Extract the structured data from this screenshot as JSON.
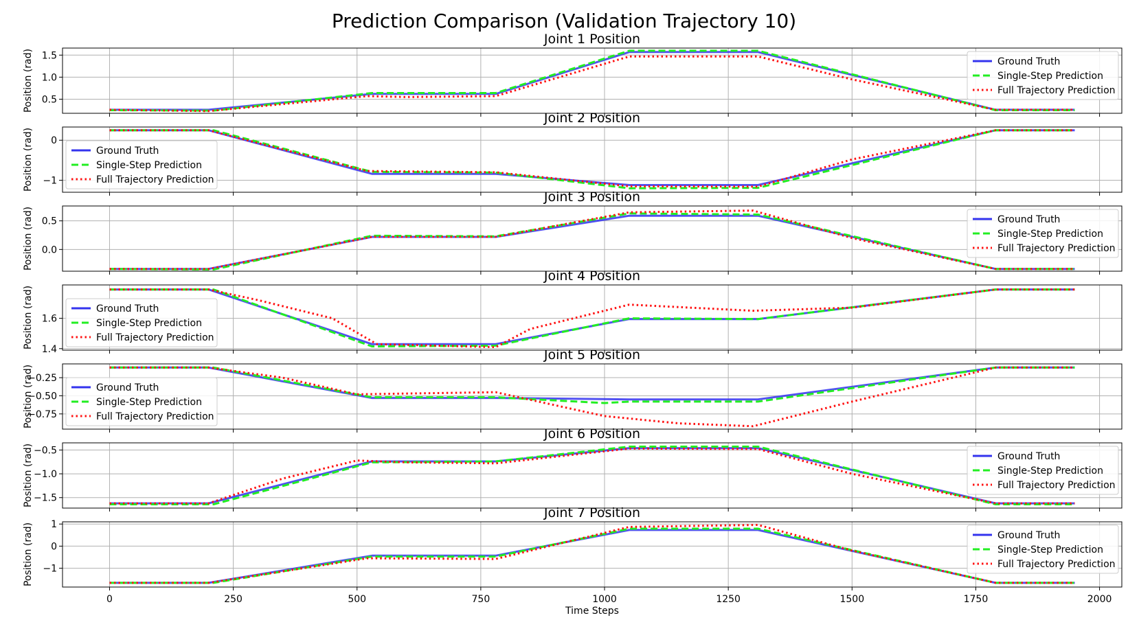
{
  "title": "Prediction Comparison (Validation Trajectory 10)",
  "xlabel": "Time Steps",
  "x_ticks": [
    0,
    250,
    500,
    750,
    1000,
    1250,
    1500,
    1750,
    2000
  ],
  "chart_data": {
    "type": "line",
    "title": "Prediction Comparison (Validation Trajectory 10)",
    "xlabel": "Time Steps",
    "xlim": [
      -95,
      2045
    ],
    "grid": true,
    "series_styles": {
      "Ground Truth": {
        "color": "#3333ee",
        "dash": "solid"
      },
      "Single-Step Prediction": {
        "color": "#22ee22",
        "dash": "dashed"
      },
      "Full Trajectory Prediction": {
        "color": "#ff1111",
        "dash": "dotted"
      }
    },
    "subplots": [
      {
        "title": "Joint 1 Position",
        "ylabel": "Position (rad)",
        "ylim": [
          0.18,
          1.66
        ],
        "yticks": [
          "0.5",
          "1.0",
          "1.5"
        ],
        "legend": "upper right",
        "series": [
          {
            "name": "Ground Truth",
            "x": [
              0,
              200,
              530,
              780,
              1050,
              1310,
              1790,
              1950
            ],
            "y": [
              0.26,
              0.26,
              0.62,
              0.62,
              1.57,
              1.57,
              0.26,
              0.26
            ]
          },
          {
            "name": "Single-Step Prediction",
            "x": [
              0,
              210,
              530,
              780,
              1050,
              1310,
              1790,
              1950
            ],
            "y": [
              0.25,
              0.24,
              0.64,
              0.64,
              1.6,
              1.6,
              0.25,
              0.25
            ]
          },
          {
            "name": "Full Trajectory Prediction",
            "x": [
              0,
              200,
              520,
              600,
              780,
              1050,
              1310,
              1500,
              1790,
              1950
            ],
            "y": [
              0.26,
              0.23,
              0.57,
              0.55,
              0.57,
              1.47,
              1.47,
              0.95,
              0.26,
              0.26
            ]
          }
        ]
      },
      {
        "title": "Joint 2 Position",
        "ylabel": "Position (rad)",
        "ylim": [
          -1.3,
          0.33
        ],
        "yticks": [
          "0",
          "−1"
        ],
        "legend": "lower left",
        "series": [
          {
            "name": "Ground Truth",
            "x": [
              0,
              200,
              530,
              780,
              1050,
              1310,
              1790,
              1950
            ],
            "y": [
              0.25,
              0.25,
              -0.84,
              -0.84,
              -1.12,
              -1.12,
              0.25,
              0.25
            ]
          },
          {
            "name": "Single-Step Prediction",
            "x": [
              0,
              210,
              530,
              780,
              1050,
              1310,
              1790,
              1950
            ],
            "y": [
              0.25,
              0.25,
              -0.79,
              -0.81,
              -1.2,
              -1.19,
              0.25,
              0.25
            ]
          },
          {
            "name": "Full Trajectory Prediction",
            "x": [
              0,
              200,
              520,
              780,
              1050,
              1310,
              1500,
              1790,
              1950
            ],
            "y": [
              0.25,
              0.25,
              -0.77,
              -0.8,
              -1.15,
              -1.16,
              -0.48,
              0.25,
              0.25
            ]
          }
        ]
      },
      {
        "title": "Joint 3 Position",
        "ylabel": "Position (rad)",
        "ylim": [
          -0.38,
          0.76
        ],
        "yticks": [
          "0.5",
          "0.0"
        ],
        "legend": "upper right",
        "series": [
          {
            "name": "Ground Truth",
            "x": [
              0,
              200,
              530,
              780,
              1050,
              1310,
              1790,
              1950
            ],
            "y": [
              -0.34,
              -0.34,
              0.22,
              0.22,
              0.59,
              0.59,
              -0.34,
              -0.34
            ]
          },
          {
            "name": "Single-Step Prediction",
            "x": [
              0,
              210,
              530,
              780,
              1050,
              1310,
              1790,
              1950
            ],
            "y": [
              -0.34,
              -0.35,
              0.24,
              0.23,
              0.63,
              0.61,
              -0.34,
              -0.34
            ]
          },
          {
            "name": "Full Trajectory Prediction",
            "x": [
              0,
              200,
              530,
              780,
              1050,
              1300,
              1500,
              1790,
              1950
            ],
            "y": [
              -0.34,
              -0.34,
              0.22,
              0.22,
              0.65,
              0.68,
              0.2,
              -0.34,
              -0.34
            ]
          }
        ]
      },
      {
        "title": "Joint 4 Position",
        "ylabel": "Position (rad)",
        "ylim": [
          1.39,
          1.82
        ],
        "yticks": [
          "1.6",
          "1.4"
        ],
        "legend": "lower left",
        "series": [
          {
            "name": "Ground Truth",
            "x": [
              0,
              200,
              530,
              780,
              1050,
              1310,
              1790,
              1950
            ],
            "y": [
              1.79,
              1.79,
              1.43,
              1.43,
              1.595,
              1.595,
              1.79,
              1.79
            ]
          },
          {
            "name": "Single-Step Prediction",
            "x": [
              0,
              210,
              530,
              780,
              1050,
              1310,
              1790,
              1950
            ],
            "y": [
              1.79,
              1.79,
              1.415,
              1.42,
              1.6,
              1.595,
              1.79,
              1.79
            ]
          },
          {
            "name": "Full Trajectory Prediction",
            "x": [
              0,
              200,
              300,
              450,
              540,
              780,
              850,
              1050,
              1300,
              1500,
              1790,
              1950
            ],
            "y": [
              1.79,
              1.79,
              1.72,
              1.6,
              1.43,
              1.41,
              1.53,
              1.69,
              1.65,
              1.67,
              1.79,
              1.79
            ]
          }
        ]
      },
      {
        "title": "Joint 5 Position",
        "ylabel": "Position (rad)",
        "ylim": [
          -0.96,
          -0.06
        ],
        "yticks": [
          "−0.25",
          "−0.50",
          "−0.75"
        ],
        "legend": "lower left",
        "series": [
          {
            "name": "Ground Truth",
            "x": [
              0,
              200,
              530,
              780,
              1050,
              1310,
              1790,
              1950
            ],
            "y": [
              -0.11,
              -0.11,
              -0.53,
              -0.53,
              -0.55,
              -0.55,
              -0.11,
              -0.11
            ]
          },
          {
            "name": "Single-Step Prediction",
            "x": [
              0,
              210,
              530,
              780,
              1000,
              1050,
              1310,
              1790,
              1950
            ],
            "y": [
              -0.11,
              -0.11,
              -0.52,
              -0.52,
              -0.6,
              -0.58,
              -0.58,
              -0.11,
              -0.11
            ]
          },
          {
            "name": "Full Trajectory Prediction",
            "x": [
              0,
              200,
              350,
              500,
              780,
              1000,
              1150,
              1300,
              1500,
              1790,
              1950
            ],
            "y": [
              -0.11,
              -0.11,
              -0.25,
              -0.48,
              -0.45,
              -0.78,
              -0.88,
              -0.92,
              -0.58,
              -0.11,
              -0.11
            ]
          }
        ]
      },
      {
        "title": "Joint 6 Position",
        "ylabel": "Position (rad)",
        "ylim": [
          -1.72,
          -0.35
        ],
        "yticks": [
          "−0.5",
          "−1.0",
          "−1.5"
        ],
        "legend": "upper right",
        "series": [
          {
            "name": "Ground Truth",
            "x": [
              0,
              200,
              530,
              780,
              1050,
              1310,
              1790,
              1950
            ],
            "y": [
              -1.62,
              -1.62,
              -0.74,
              -0.74,
              -0.46,
              -0.46,
              -1.62,
              -1.62
            ]
          },
          {
            "name": "Single-Step Prediction",
            "x": [
              0,
              210,
              530,
              780,
              1050,
              1310,
              1790,
              1950
            ],
            "y": [
              -1.64,
              -1.64,
              -0.76,
              -0.74,
              -0.43,
              -0.43,
              -1.64,
              -1.64
            ]
          },
          {
            "name": "Full Trajectory Prediction",
            "x": [
              0,
              200,
              350,
              500,
              600,
              780,
              1050,
              1310,
              1500,
              1790,
              1950
            ],
            "y": [
              -1.62,
              -1.62,
              -1.1,
              -0.72,
              -0.76,
              -0.78,
              -0.47,
              -0.48,
              -1.0,
              -1.62,
              -1.62
            ]
          }
        ]
      },
      {
        "title": "Joint 7 Position",
        "ylabel": "Position (rad)",
        "ylim": [
          -1.85,
          1.1
        ],
        "yticks": [
          "1",
          "0",
          "−1"
        ],
        "legend": "upper right",
        "series": [
          {
            "name": "Ground Truth",
            "x": [
              0,
              200,
              530,
              780,
              1050,
              1310,
              1790,
              1950
            ],
            "y": [
              -1.66,
              -1.66,
              -0.43,
              -0.43,
              0.73,
              0.73,
              -1.66,
              -1.66
            ]
          },
          {
            "name": "Single-Step Prediction",
            "x": [
              0,
              210,
              530,
              780,
              1050,
              1310,
              1790,
              1950
            ],
            "y": [
              -1.66,
              -1.66,
              -0.47,
              -0.47,
              0.79,
              0.79,
              -1.66,
              -1.66
            ]
          },
          {
            "name": "Full Trajectory Prediction",
            "x": [
              0,
              200,
              520,
              780,
              1050,
              1310,
              1500,
              1790,
              1950
            ],
            "y": [
              -1.66,
              -1.66,
              -0.55,
              -0.58,
              0.87,
              0.96,
              -0.2,
              -1.66,
              -1.66
            ]
          }
        ]
      }
    ]
  }
}
